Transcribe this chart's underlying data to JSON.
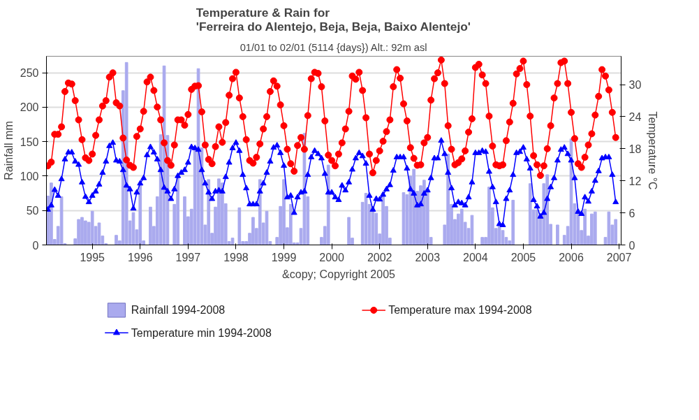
{
  "chart_data": {
    "type": "bar",
    "title": "Temperature & Rain for\n'Ferreira do Alentejo, Beja, Beja, Baixo Alentejo'",
    "subtitle": "01/01 to 02/01 (5114 {days}) Alt.: 92m asl",
    "ylabel": "Rainfall mm",
    "y2label": "Temperature °C",
    "annotations": [
      "&copy; Copyright 2005"
    ],
    "x": [
      "1994-01",
      "1994-02",
      "1994-03",
      "1994-04",
      "1994-05",
      "1994-06",
      "1994-07",
      "1994-08",
      "1994-09",
      "1994-10",
      "1994-11",
      "1994-12",
      "1995-01",
      "1995-02",
      "1995-03",
      "1995-04",
      "1995-05",
      "1995-06",
      "1995-07",
      "1995-08",
      "1995-09",
      "1995-10",
      "1995-11",
      "1995-12",
      "1996-01",
      "1996-02",
      "1996-03",
      "1996-04",
      "1996-05",
      "1996-06",
      "1996-07",
      "1996-08",
      "1996-09",
      "1996-10",
      "1996-11",
      "1996-12",
      "1997-01",
      "1997-02",
      "1997-03",
      "1997-04",
      "1997-05",
      "1997-06",
      "1997-07",
      "1997-08",
      "1997-09",
      "1997-10",
      "1997-11",
      "1997-12",
      "1998-01",
      "1998-02",
      "1998-03",
      "1998-04",
      "1998-05",
      "1998-06",
      "1998-07",
      "1998-08",
      "1998-09",
      "1998-10",
      "1998-11",
      "1998-12",
      "1999-01",
      "1999-02",
      "1999-03",
      "1999-04",
      "1999-05",
      "1999-06",
      "1999-07",
      "1999-08",
      "1999-09",
      "1999-10",
      "1999-11",
      "1999-12",
      "2000-01",
      "2000-02",
      "2000-03",
      "2000-04",
      "2000-05",
      "2000-06",
      "2000-07",
      "2000-08",
      "2000-09",
      "2000-10",
      "2000-11",
      "2000-12",
      "2001-01",
      "2001-02",
      "2001-03",
      "2001-04",
      "2001-05",
      "2001-06",
      "2001-07",
      "2001-08",
      "2001-09",
      "2001-10",
      "2001-11",
      "2001-12",
      "2002-01",
      "2002-02",
      "2002-03",
      "2002-04",
      "2002-05",
      "2002-06",
      "2002-07",
      "2002-08",
      "2002-09",
      "2002-10",
      "2002-11",
      "2002-12",
      "2003-01",
      "2003-02",
      "2003-03",
      "2003-04",
      "2003-05",
      "2003-06",
      "2003-07",
      "2003-08",
      "2003-09",
      "2003-10",
      "2003-11",
      "2003-12",
      "2004-01",
      "2004-02",
      "2004-03",
      "2004-04",
      "2004-05",
      "2004-06",
      "2004-07",
      "2004-08",
      "2004-09",
      "2004-10",
      "2004-11",
      "2004-12",
      "2005-01",
      "2005-02",
      "2005-03",
      "2005-04",
      "2005-05",
      "2005-06",
      "2005-07",
      "2005-08",
      "2005-09",
      "2005-10",
      "2005-11",
      "2005-12",
      "2006-01",
      "2006-02",
      "2006-03",
      "2006-04",
      "2006-05",
      "2006-06",
      "2006-07",
      "2006-08",
      "2006-09",
      "2006-10",
      "2006-11",
      "2006-12",
      "2007-01",
      "2007-02",
      "2007-03",
      "2007-04",
      "2007-05",
      "2007-06",
      "2007-07",
      "2007-08",
      "2007-09",
      "2007-10",
      "2007-11"
    ],
    "series": [
      {
        "name": "Rainfall 1994-2008",
        "color": "#aaaaee",
        "values": [
          71,
          90,
          8,
          27,
          70,
          2,
          0,
          0,
          9,
          37,
          40,
          35,
          33,
          49,
          27,
          32,
          13,
          2,
          0,
          0,
          14,
          6,
          224,
          265,
          35,
          47,
          22,
          87,
          6,
          0,
          55,
          27,
          70,
          160,
          260,
          159,
          0,
          59,
          100,
          0,
          70,
          41,
          52,
          141,
          256,
          141,
          29,
          95,
          17,
          55,
          96,
          90,
          60,
          5,
          10,
          0,
          54,
          5,
          5,
          17,
          40,
          24,
          95,
          32,
          49,
          5,
          0,
          11,
          56,
          95,
          25,
          59,
          3,
          3,
          24,
          162,
          70,
          0,
          0,
          0,
          11,
          27,
          116,
          0,
          0,
          0,
          0,
          0,
          40,
          10,
          0,
          0,
          62,
          75,
          59,
          56,
          46,
          16,
          75,
          56,
          10,
          0,
          0,
          0,
          76,
          73,
          100,
          110,
          78,
          86,
          94,
          78,
          11,
          0,
          0,
          0,
          29,
          132,
          59,
          37,
          45,
          52,
          33,
          24,
          43,
          0,
          0,
          11,
          11,
          84,
          54,
          24,
          27,
          21,
          11,
          6,
          65,
          0,
          0,
          0,
          0,
          89,
          51,
          51,
          43,
          89,
          102,
          30,
          0,
          29,
          0,
          14,
          27,
          154,
          60,
          51,
          21,
          52,
          13,
          45,
          48,
          0,
          0,
          11,
          48,
          29,
          37
        ]
      },
      {
        "name": "Temperature max 1994-2008",
        "type": "line",
        "axis": "y2",
        "marker": "circle",
        "color": "#ff0000",
        "values": [
          14.8,
          15.5,
          20.7,
          20.7,
          22.1,
          28.7,
          30.3,
          30.1,
          27.0,
          23.4,
          19.7,
          16.3,
          15.8,
          17.0,
          20.5,
          23.4,
          26.0,
          27.0,
          31.4,
          32.2,
          26.6,
          26.0,
          20.0,
          15.9,
          14.9,
          14.5,
          20.3,
          21.7,
          25.0,
          30.5,
          31.4,
          28.9,
          25.8,
          23.4,
          19.1,
          15.8,
          14.9,
          18.7,
          23.4,
          23.4,
          22.4,
          24.4,
          29.1,
          29.7,
          29.8,
          24.9,
          18.7,
          16.0,
          15.2,
          18.4,
          22.1,
          19.2,
          22.9,
          28.0,
          31.1,
          32.3,
          27.5,
          24.0,
          19.7,
          15.8,
          15.3,
          16.4,
          18.9,
          21.7,
          24.0,
          28.7,
          30.7,
          29.7,
          26.2,
          22.3,
          17.9,
          15.2,
          13.8,
          18.6,
          20.1,
          17.9,
          24.2,
          31.1,
          32.3,
          32.1,
          29.6,
          23.2,
          16.8,
          15.8,
          14.8,
          17.0,
          19.1,
          21.7,
          25.0,
          31.6,
          31.0,
          32.3,
          28.9,
          23.8,
          17.0,
          13.5,
          15.8,
          17.6,
          19.4,
          21.2,
          23.4,
          29.6,
          32.8,
          31.2,
          26.4,
          23.2,
          18.2,
          16.2,
          14.9,
          15.0,
          19.1,
          20.1,
          27.1,
          31.1,
          32.2,
          34.6,
          30.2,
          22.3,
          17.9,
          15.0,
          15.4,
          16.1,
          17.6,
          21.1,
          23.6,
          33.2,
          33.8,
          31.8,
          30.2,
          24.1,
          18.5,
          15.0,
          14.8,
          15.0,
          19.5,
          23.0,
          26.5,
          32.0,
          33.0,
          34.4,
          30.0,
          24.1,
          16.7,
          15.0,
          13.0,
          14.8,
          18.0,
          22.3,
          27.5,
          30.2,
          34.1,
          34.4,
          30.2,
          24.8,
          19.9,
          15.2,
          14.5,
          16.4,
          18.7,
          20.8,
          24.3,
          27.8,
          32.8,
          31.6,
          29.0,
          24.8,
          20.1
        ]
      },
      {
        "name": "Temperature min 1994-2008",
        "type": "line",
        "axis": "y2",
        "marker": "triangle",
        "color": "#0000ff",
        "values": [
          6.6,
          7.4,
          10.3,
          9.2,
          12.3,
          16.0,
          17.3,
          17.3,
          15.6,
          15.0,
          11.7,
          9.0,
          8.0,
          9.2,
          10.0,
          11.3,
          13.5,
          15.6,
          18.5,
          19.1,
          15.8,
          15.6,
          14.0,
          11.1,
          10.4,
          6.8,
          9.8,
          11.5,
          12.5,
          16.8,
          18.3,
          17.3,
          16.0,
          14.0,
          10.7,
          10.0,
          8.6,
          10.4,
          12.9,
          13.5,
          14.0,
          15.4,
          18.3,
          18.1,
          17.8,
          14.0,
          11.5,
          9.8,
          8.6,
          10.0,
          10.2,
          10.0,
          12.7,
          15.4,
          18.1,
          19.1,
          17.6,
          13.1,
          10.6,
          7.6,
          7.6,
          7.6,
          10.0,
          11.5,
          13.5,
          15.6,
          18.2,
          18.6,
          17.2,
          14.8,
          8.9,
          9.2,
          6.0,
          8.9,
          9.8,
          10.0,
          13.1,
          16.4,
          17.6,
          17.0,
          16.2,
          13.3,
          9.8,
          9.8,
          8.9,
          8.4,
          11.1,
          10.2,
          11.7,
          14.1,
          16.2,
          17.2,
          16.6,
          15.2,
          9.2,
          6.6,
          8.6,
          8.5,
          9.4,
          10.4,
          11.2,
          13.9,
          16.4,
          16.4,
          16.4,
          14.3,
          10.4,
          9.6,
          7.4,
          7.6,
          9.6,
          10.2,
          12.5,
          16.2,
          16.2,
          19.5,
          17.0,
          13.5,
          10.6,
          7.4,
          8.0,
          7.8,
          7.4,
          8.9,
          11.7,
          17.2,
          17.2,
          17.6,
          17.4,
          13.7,
          10.8,
          8.0,
          3.9,
          3.7,
          8.6,
          10.2,
          13.1,
          17.2,
          17.4,
          18.2,
          16.0,
          14.3,
          8.4,
          7.2,
          5.3,
          6.0,
          8.6,
          10.8,
          12.5,
          15.8,
          17.8,
          18.2,
          17.0,
          15.8,
          12.5,
          6.2,
          5.8,
          8.9,
          8.1,
          10.0,
          12.0,
          13.8,
          16.2,
          16.4,
          16.4,
          13.1,
          8.0
        ]
      }
    ],
    "xlim": [
      "1993-12-19",
      "2007-12-19"
    ],
    "xticks": [
      {
        "value": "1995-02",
        "label": "1995"
      },
      {
        "value": "1996-04",
        "label": "1996"
      },
      {
        "value": "1997-06",
        "label": "1997"
      },
      {
        "value": "1998-08",
        "label": "1998"
      },
      {
        "value": "1999-10",
        "label": "1999"
      },
      {
        "value": "2000-12",
        "label": "2000"
      },
      {
        "value": "2002-02",
        "label": "2002"
      },
      {
        "value": "2003-04",
        "label": "2003"
      },
      {
        "value": "2004-06",
        "label": "2004"
      },
      {
        "value": "2005-08",
        "label": "2005"
      },
      {
        "value": "2006-10",
        "label": "2006"
      },
      {
        "value": "2007-12",
        "label": "2007"
      }
    ],
    "ylim": [
      0,
      274
    ],
    "yticks": [
      0,
      50,
      100,
      150,
      200,
      250
    ],
    "y2lim": [
      0,
      35.3
    ],
    "y2ticks": [
      0,
      6,
      12,
      18,
      24,
      30
    ],
    "grid": "y",
    "legend": "bottom"
  }
}
